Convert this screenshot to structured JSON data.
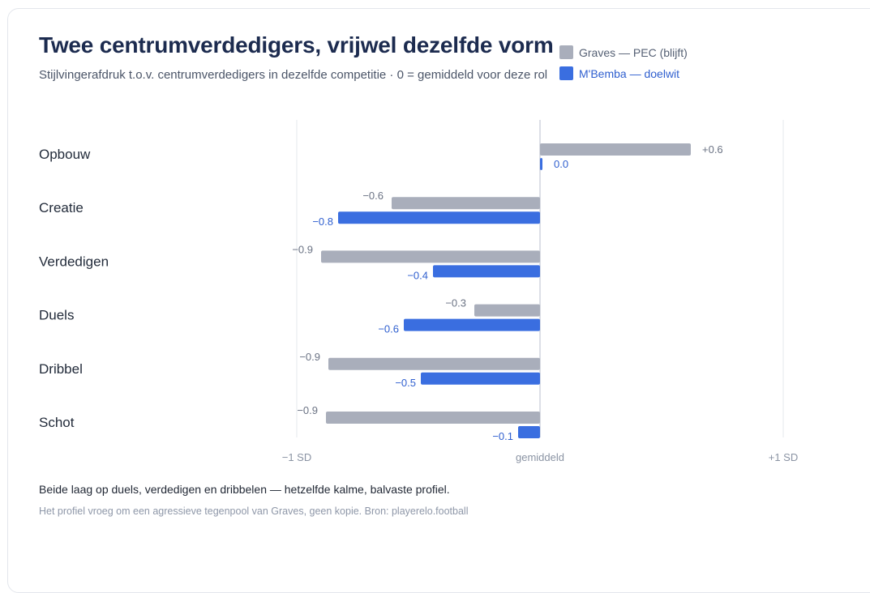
{
  "header": {
    "title": "Twee centrumverdedigers, vrijwel dezelfde vorm",
    "subtitle": "Stijlvingerafdruk t.o.v. centrumverdedigers in dezelfde competitie · 0 = gemiddeld voor deze rol"
  },
  "legend": [
    {
      "label": "Graves — PEC (blijft)",
      "color": "#a9aebb",
      "text_color": "#556074"
    },
    {
      "label": "M'Bemba — doelwit",
      "color": "#3a6ee0",
      "text_color": "#2f5fcf"
    }
  ],
  "chart_data": {
    "type": "bar",
    "orientation": "horizontal",
    "categories": [
      "Opbouw",
      "Creatie",
      "Verdedigen",
      "Duels",
      "Dribbel",
      "Schot"
    ],
    "series": [
      {
        "name": "Graves — PEC (blijft)",
        "color": "#a9aebb",
        "values": [
          0.62,
          -0.61,
          -0.9,
          -0.27,
          -0.87,
          -0.88
        ],
        "labels": [
          "+0.6",
          "−0.6",
          "−0.9",
          "−0.3",
          "−0.9",
          "−0.9"
        ]
      },
      {
        "name": "M'Bemba — doelwit",
        "color": "#3a6ee0",
        "values": [
          0.0,
          -0.83,
          -0.44,
          -0.56,
          -0.49,
          -0.09
        ],
        "labels": [
          "0.0",
          "−0.8",
          "−0.4",
          "−0.6",
          "−0.5",
          "−0.1"
        ]
      }
    ],
    "xlim": [
      -1,
      1
    ],
    "ticks": [
      {
        "value": -1,
        "label": "−1 SD"
      },
      {
        "value": 0,
        "label": "gemiddeld"
      },
      {
        "value": 1,
        "label": "+1 SD"
      }
    ],
    "grid": true,
    "legend_position": "top-right"
  },
  "footer": {
    "main": "Beide laag op duels, verdedigen en dribbelen — hetzelfde kalme, balvaste profiel.",
    "note": "Het profiel vroeg om een agressieve tegenpool van Graves, geen kopie. Bron: playerelo.football"
  }
}
